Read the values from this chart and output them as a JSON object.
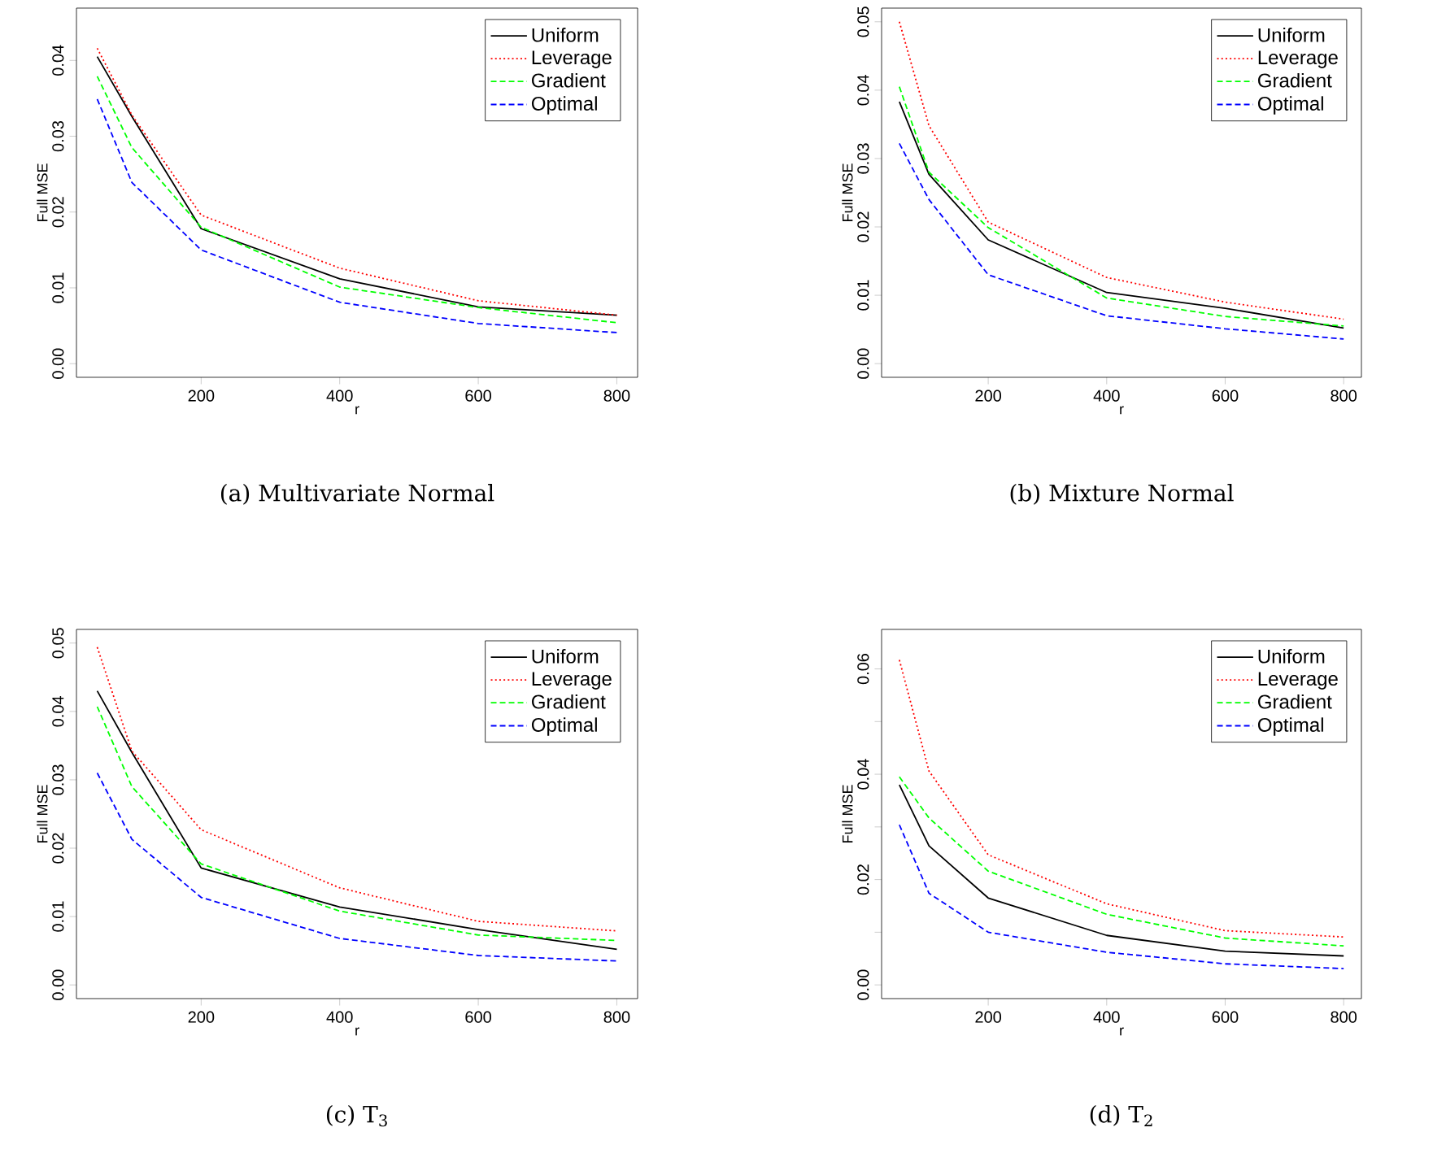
{
  "chart_data": [
    {
      "type": "line",
      "title": "(a) Multivariate Normal",
      "xlabel": "r",
      "ylabel": "Full MSE",
      "x": [
        50,
        100,
        200,
        400,
        600,
        800
      ],
      "xlim": [
        20,
        830
      ],
      "ylim": [
        -0.0018,
        0.0469
      ],
      "xticks": [
        200,
        400,
        600,
        800
      ],
      "yticks": [
        {
          "value": 0,
          "label": "0.00"
        },
        0.01,
        0.02,
        0.03,
        0.04
      ],
      "legend": "top right",
      "series": [
        {
          "name": "Uniform",
          "color": "#000000",
          "line_style": "solid",
          "values": [
            0.0405,
            0.0326,
            0.0178,
            0.0112,
            0.0075,
            0.0064
          ]
        },
        {
          "name": "Leverage",
          "color": "#ff0000",
          "line_style": "dotted",
          "values": [
            0.0416,
            0.0328,
            0.0196,
            0.0126,
            0.0083,
            0.0064
          ]
        },
        {
          "name": "Gradient",
          "color": "#00ff00",
          "line_style": "dashed",
          "values": [
            0.0379,
            0.0285,
            0.018,
            0.0101,
            0.0074,
            0.0054
          ]
        },
        {
          "name": "Optimal",
          "color": "#0000ff",
          "line_style": "dashed",
          "values": [
            0.0349,
            0.0239,
            0.015,
            0.0081,
            0.0053,
            0.0041
          ]
        }
      ]
    },
    {
      "type": "line",
      "title": "(b) Mixture Normal",
      "xlabel": "r",
      "ylabel": "Full MSE",
      "x": [
        50,
        100,
        200,
        400,
        600,
        800
      ],
      "xlim": [
        20,
        830
      ],
      "ylim": [
        -0.002,
        0.052
      ],
      "xticks": [
        200,
        400,
        600,
        800
      ],
      "yticks": [
        {
          "value": 0,
          "label": "0.00"
        },
        0.01,
        0.02,
        0.03,
        0.04,
        0.05
      ],
      "legend": "top right",
      "series": [
        {
          "name": "Uniform",
          "color": "#000000",
          "line_style": "solid",
          "values": [
            0.0383,
            0.0277,
            0.0181,
            0.0104,
            0.0081,
            0.0052
          ]
        },
        {
          "name": "Leverage",
          "color": "#ff0000",
          "line_style": "dotted",
          "values": [
            0.05,
            0.0348,
            0.0207,
            0.0126,
            0.009,
            0.0065
          ]
        },
        {
          "name": "Gradient",
          "color": "#00ff00",
          "line_style": "dashed",
          "values": [
            0.0405,
            0.028,
            0.0199,
            0.0096,
            0.0069,
            0.0055
          ]
        },
        {
          "name": "Optimal",
          "color": "#0000ff",
          "line_style": "dashed",
          "values": [
            0.0322,
            0.024,
            0.013,
            0.007,
            0.0051,
            0.0036
          ]
        }
      ]
    },
    {
      "type": "line",
      "title": "(c) T$_{3}$",
      "xlabel": "r",
      "ylabel": "Full MSE",
      "x": [
        50,
        100,
        200,
        400,
        600,
        800
      ],
      "xlim": [
        20,
        830
      ],
      "ylim": [
        -0.002,
        0.052
      ],
      "xticks": [
        200,
        400,
        600,
        800
      ],
      "yticks": [
        {
          "value": 0,
          "label": "0.00"
        },
        0.01,
        0.02,
        0.03,
        0.04,
        0.05
      ],
      "legend": "top right",
      "series": [
        {
          "name": "Uniform",
          "color": "#000000",
          "line_style": "solid",
          "values": [
            0.043,
            0.034,
            0.0171,
            0.0114,
            0.0081,
            0.0052
          ]
        },
        {
          "name": "Leverage",
          "color": "#ff0000",
          "line_style": "dotted",
          "values": [
            0.0494,
            0.0342,
            0.0227,
            0.0142,
            0.0093,
            0.0079
          ]
        },
        {
          "name": "Gradient",
          "color": "#00ff00",
          "line_style": "dashed",
          "values": [
            0.0407,
            0.029,
            0.0177,
            0.0108,
            0.0073,
            0.0065
          ]
        },
        {
          "name": "Optimal",
          "color": "#0000ff",
          "line_style": "dashed",
          "values": [
            0.031,
            0.0213,
            0.0128,
            0.0068,
            0.0043,
            0.0035
          ]
        }
      ]
    },
    {
      "type": "line",
      "title": "(d) T$_{2}$",
      "xlabel": "r",
      "ylabel": "Full MSE",
      "x": [
        50,
        100,
        200,
        400,
        600,
        800
      ],
      "xlim": [
        20,
        830
      ],
      "ylim": [
        -0.0026,
        0.0675
      ],
      "xticks": [
        200,
        400,
        600,
        800
      ],
      "yticks": [
        {
          "value": 0,
          "label": "0.00"
        },
        {
          "value": 0.01,
          "label": null
        },
        0.02,
        {
          "value": 0.03,
          "label": null
        },
        0.04,
        {
          "value": 0.05,
          "label": null
        },
        0.06
      ],
      "legend": "top right",
      "series": [
        {
          "name": "Uniform",
          "color": "#000000",
          "line_style": "solid",
          "values": [
            0.038,
            0.0264,
            0.0165,
            0.0094,
            0.0064,
            0.0055
          ]
        },
        {
          "name": "Leverage",
          "color": "#ff0000",
          "line_style": "dotted",
          "values": [
            0.0617,
            0.0406,
            0.0247,
            0.0154,
            0.0103,
            0.0091
          ]
        },
        {
          "name": "Gradient",
          "color": "#00ff00",
          "line_style": "dashed",
          "values": [
            0.0395,
            0.0317,
            0.0216,
            0.0134,
            0.0089,
            0.0074
          ]
        },
        {
          "name": "Optimal",
          "color": "#0000ff",
          "line_style": "dashed",
          "values": [
            0.0304,
            0.0174,
            0.01,
            0.0062,
            0.004,
            0.0031
          ]
        }
      ]
    }
  ]
}
